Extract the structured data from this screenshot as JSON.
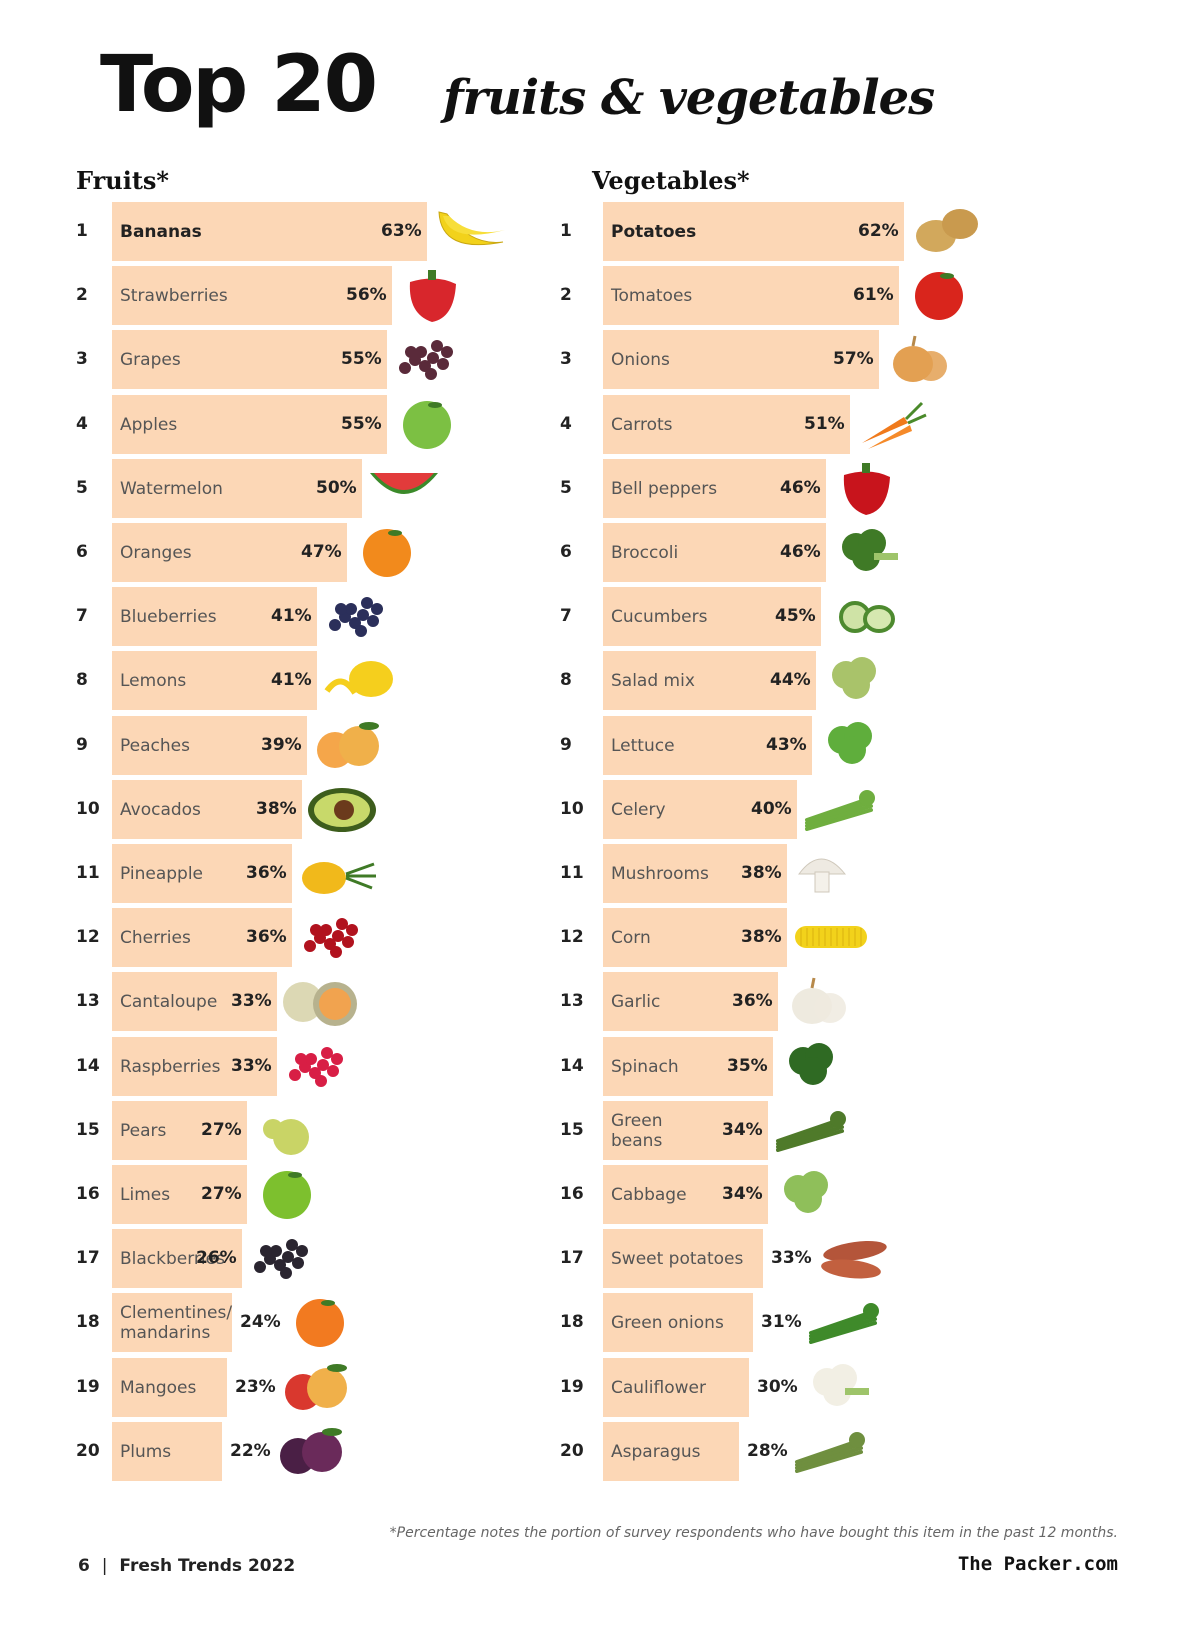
{
  "title": {
    "main": "Top 20",
    "sub": "fruits & vegetables"
  },
  "chart_data": [
    {
      "type": "bar",
      "title": "Fruits*",
      "categories": [
        "Bananas",
        "Strawberries",
        "Grapes",
        "Apples",
        "Watermelon",
        "Oranges",
        "Blueberries",
        "Lemons",
        "Peaches",
        "Avocados",
        "Pineapple",
        "Cherries",
        "Cantaloupe",
        "Raspberries",
        "Pears",
        "Limes",
        "Blackberries",
        "Clementines/\nmandarins",
        "Mangoes",
        "Plums"
      ],
      "values": [
        63,
        56,
        55,
        55,
        50,
        47,
        41,
        41,
        39,
        38,
        36,
        36,
        33,
        33,
        27,
        27,
        26,
        24,
        23,
        22
      ],
      "labels": [
        "63%",
        "56%",
        "55%",
        "55%",
        "50%",
        "47%",
        "41%",
        "41%",
        "39%",
        "38%",
        "36%",
        "36%",
        "33%",
        "33%",
        "27%",
        "27%",
        "26%",
        "24%",
        "23%",
        "22%"
      ],
      "ranks": [
        "1",
        "2",
        "3",
        "4",
        "5",
        "6",
        "7",
        "8",
        "9",
        "10",
        "11",
        "12",
        "13",
        "14",
        "15",
        "16",
        "17",
        "18",
        "19",
        "20"
      ],
      "icons": [
        "banana-icon",
        "strawberry-icon",
        "grapes-icon",
        "apple-icon",
        "watermelon-icon",
        "orange-icon",
        "blueberries-icon",
        "lemon-icon",
        "peach-icon",
        "avocado-icon",
        "pineapple-icon",
        "cherries-icon",
        "cantaloupe-icon",
        "raspberries-icon",
        "pear-icon",
        "lime-icon",
        "blackberries-icon",
        "mandarin-icon",
        "mango-icon",
        "plum-icon"
      ],
      "icon_colors": [
        "#f2d21b",
        "#d8262c",
        "#5a2a3a",
        "#7cc043",
        "#e23b3b",
        "#f28a1c",
        "#2b2f5a",
        "#f5cf1d",
        "#f5a64a",
        "#3d5d1c",
        "#f1b91b",
        "#b1121e",
        "#f1a34f",
        "#d81e45",
        "#c9d466",
        "#7dc02e",
        "#2a2530",
        "#f27a20",
        "#d9382e",
        "#4a1f45"
      ]
    },
    {
      "type": "bar",
      "title": "Vegetables*",
      "categories": [
        "Potatoes",
        "Tomatoes",
        "Onions",
        "Carrots",
        "Bell peppers",
        "Broccoli",
        "Cucumbers",
        "Salad mix",
        "Lettuce",
        "Celery",
        "Mushrooms",
        "Corn",
        "Garlic",
        "Spinach",
        "Green\nbeans",
        "Cabbage",
        "Sweet potatoes",
        "Green onions",
        "Cauliflower",
        "Asparagus"
      ],
      "values": [
        62,
        61,
        57,
        51,
        46,
        46,
        45,
        44,
        43,
        40,
        38,
        38,
        36,
        35,
        34,
        34,
        33,
        31,
        30,
        28
      ],
      "labels": [
        "62%",
        "61%",
        "57%",
        "51%",
        "46%",
        "46%",
        "45%",
        "44%",
        "43%",
        "40%",
        "38%",
        "38%",
        "36%",
        "35%",
        "34%",
        "34%",
        "33%",
        "31%",
        "30%",
        "28%"
      ],
      "ranks": [
        "1",
        "2",
        "3",
        "4",
        "5",
        "6",
        "7",
        "8",
        "9",
        "10",
        "11",
        "12",
        "13",
        "14",
        "15",
        "16",
        "17",
        "18",
        "19",
        "20"
      ],
      "icons": [
        "potato-icon",
        "tomato-icon",
        "onion-icon",
        "carrot-icon",
        "bell-pepper-icon",
        "broccoli-icon",
        "cucumber-icon",
        "salad-mix-icon",
        "lettuce-icon",
        "celery-icon",
        "mushroom-icon",
        "corn-icon",
        "garlic-icon",
        "spinach-icon",
        "green-beans-icon",
        "cabbage-icon",
        "sweet-potato-icon",
        "green-onion-icon",
        "cauliflower-icon",
        "asparagus-icon"
      ],
      "icon_colors": [
        "#d2a85c",
        "#d9251c",
        "#e3a052",
        "#f07a1c",
        "#c8141c",
        "#3f7a26",
        "#4d8a2f",
        "#a9c36a",
        "#5fae3c",
        "#6fae3f",
        "#eeeae2",
        "#f2d21b",
        "#eeeadf",
        "#2f6a23",
        "#4f7a2a",
        "#8fbf5a",
        "#b4553a",
        "#3f8a2a",
        "#f2efe4",
        "#6f8f3f"
      ]
    }
  ],
  "footnote": "*Percentage notes the portion of survey respondents who have bought this item in the past 12 months.",
  "footer": {
    "page": "6",
    "separator": "|",
    "publication": "Fresh Trends 2022",
    "brand": "The Packer.com"
  }
}
